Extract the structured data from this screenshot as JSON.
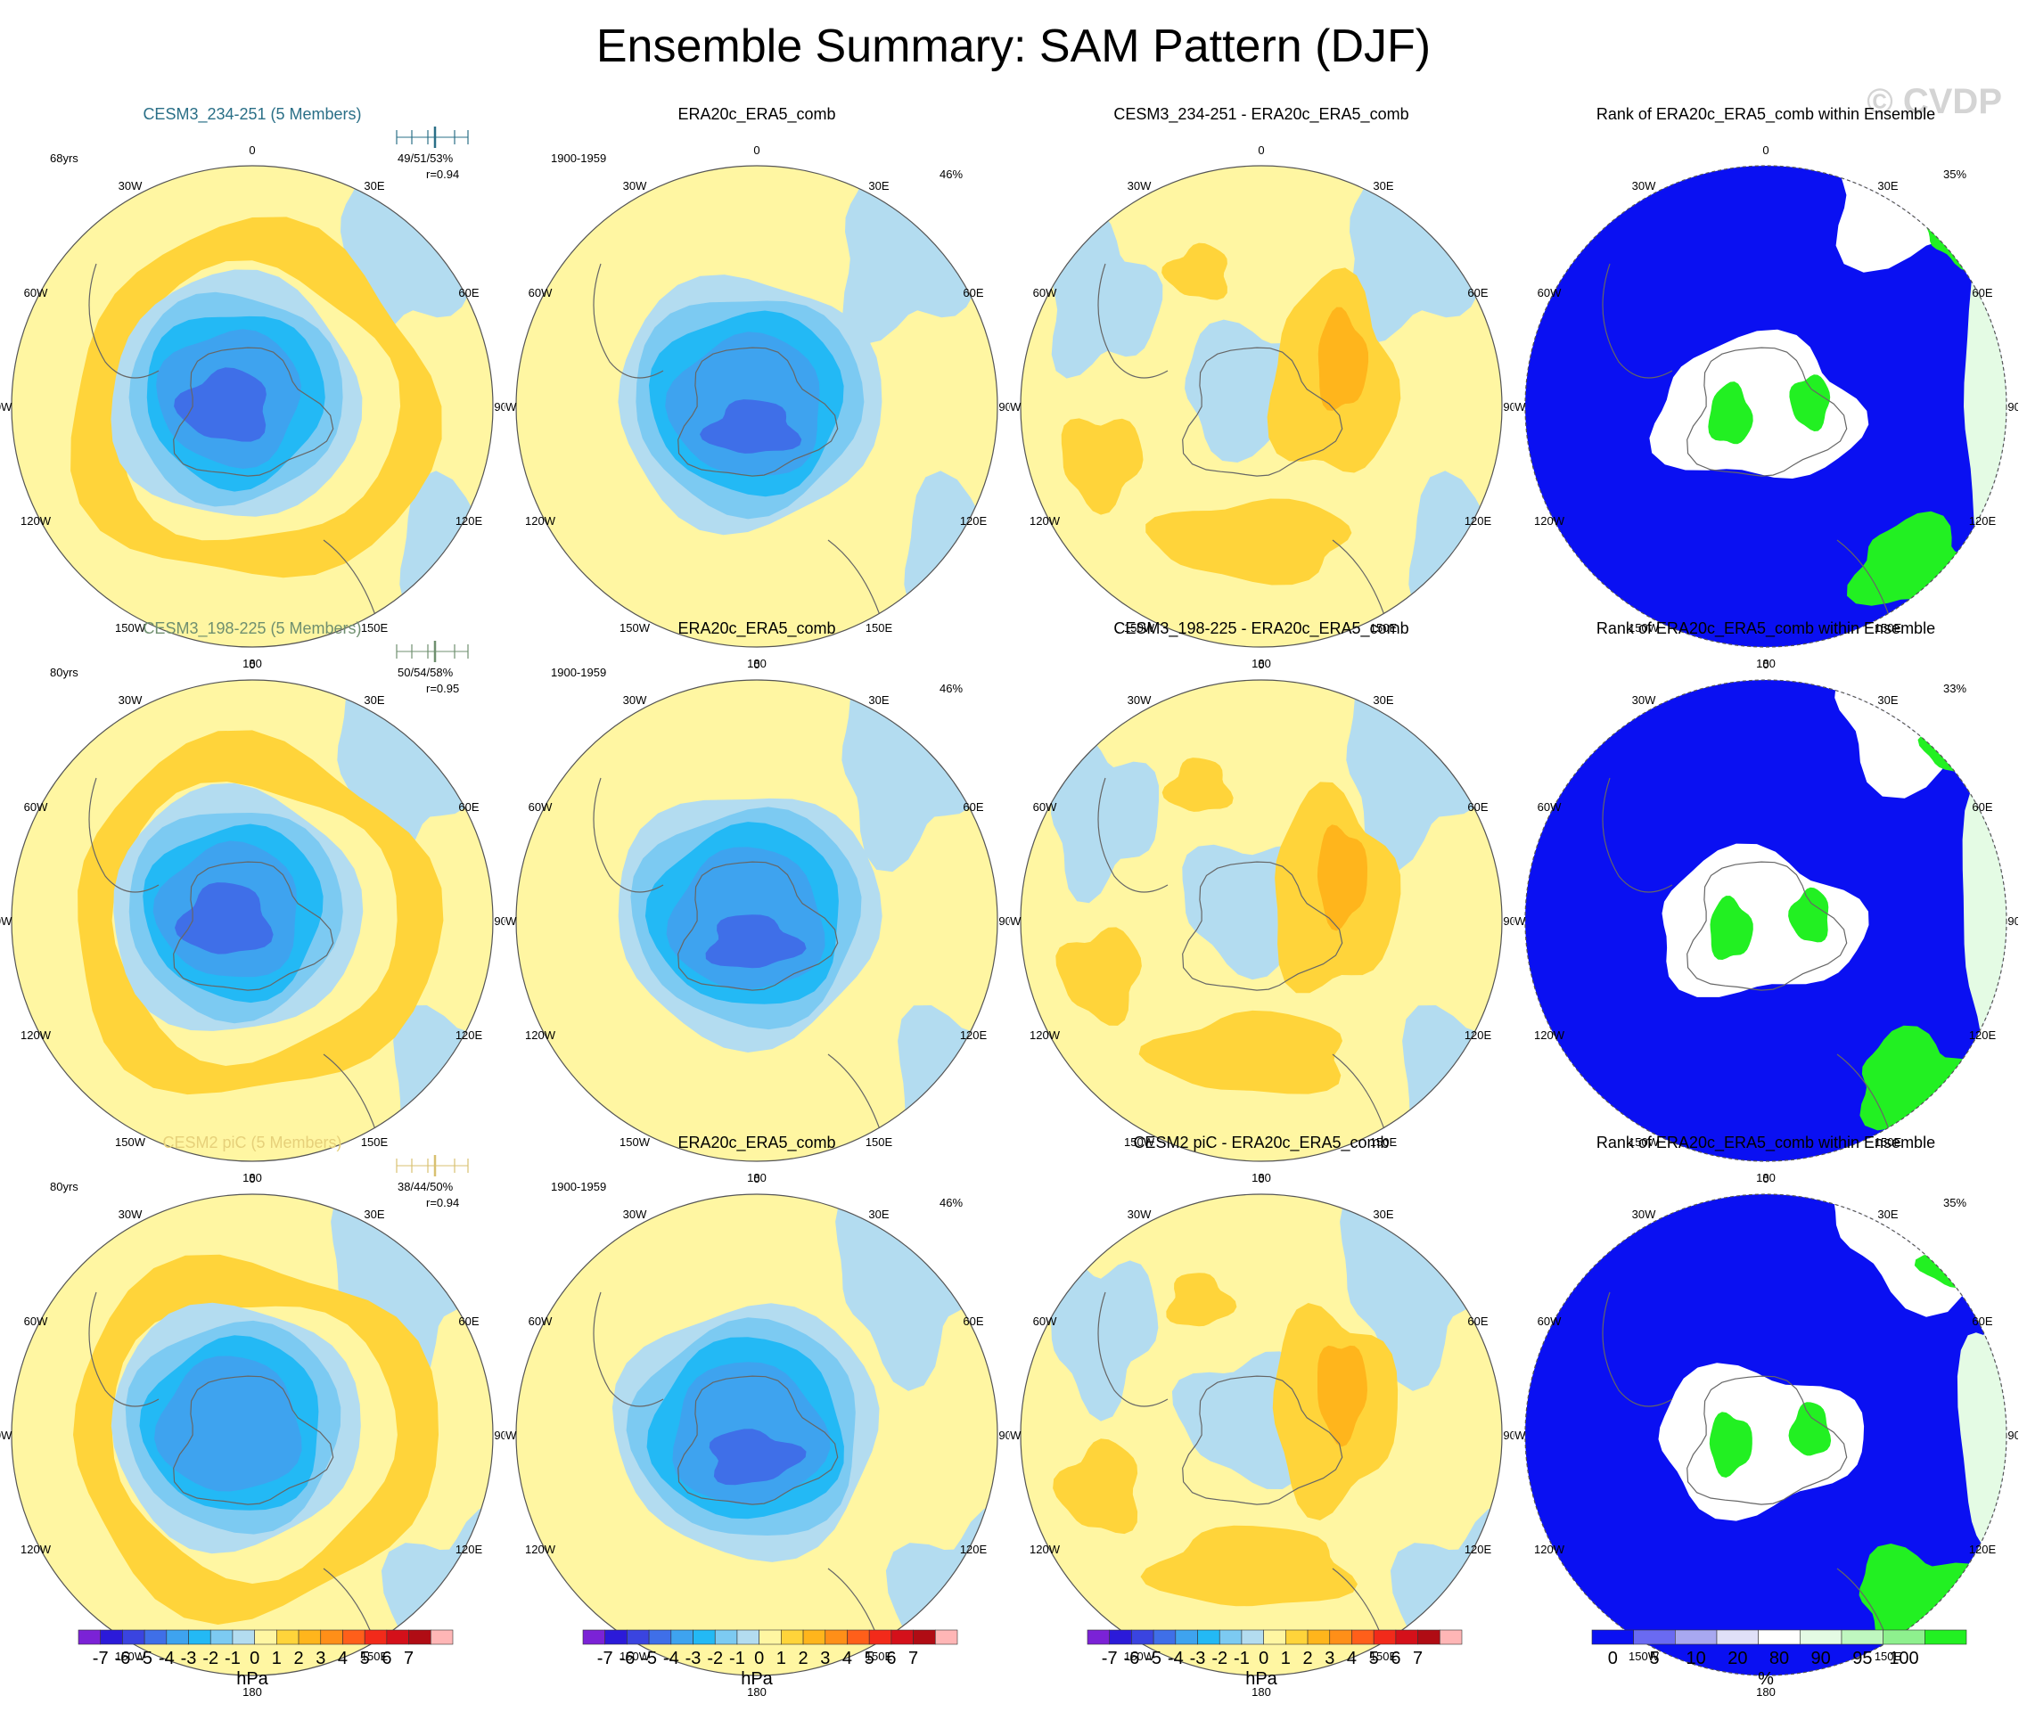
{
  "title": "Ensemble Summary: SAM Pattern (DJF)",
  "watermark": "© CVDP",
  "lon_labels": [
    "0",
    "30E",
    "60E",
    "90E",
    "120E",
    "150E",
    "180",
    "150W",
    "120W",
    "90W",
    "60W",
    "30W"
  ],
  "rows": [
    {
      "ensemble": {
        "title": "CESM3_234-251 (5 Members)",
        "title_color": "#2a6f87",
        "years": "68yrs",
        "pct": "49/51/53%",
        "r": "r=0.94",
        "tick_color": "#2a6f87"
      },
      "obs": {
        "title": "ERA20c_ERA5_comb",
        "years": "1900-1959",
        "pct": "46%"
      },
      "diff": {
        "title": "CESM3_234-251 - ERA20c_ERA5_comb"
      },
      "rank": {
        "title": "Rank of ERA20c_ERA5_comb within Ensemble",
        "pct": "35%"
      }
    },
    {
      "ensemble": {
        "title": "CESM3_198-225 (5 Members)",
        "title_color": "#6f8f6f",
        "years": "80yrs",
        "pct": "50/54/58%",
        "r": "r=0.95",
        "tick_color": "#6f8f6f"
      },
      "obs": {
        "title": "ERA20c_ERA5_comb",
        "years": "1900-1959",
        "pct": "46%"
      },
      "diff": {
        "title": "CESM3_198-225 - ERA20c_ERA5_comb"
      },
      "rank": {
        "title": "Rank of ERA20c_ERA5_comb within Ensemble",
        "pct": "33%"
      }
    },
    {
      "ensemble": {
        "title": "CESM2 piC (5 Members)",
        "title_color": "#e6d07a",
        "years": "80yrs",
        "pct": "38/44/50%",
        "r": "r=0.94",
        "tick_color": "#d8c070"
      },
      "obs": {
        "title": "ERA20c_ERA5_comb",
        "years": "1900-1959",
        "pct": "46%"
      },
      "diff": {
        "title": "CESM2 piC - ERA20c_ERA5_comb"
      },
      "rank": {
        "title": "Rank of ERA20c_ERA5_comb within Ensemble",
        "pct": "35%"
      }
    }
  ],
  "colorbar_hpa": {
    "unit": "hPa",
    "colors": [
      "#7b22d6",
      "#2b1ad9",
      "#3a44e0",
      "#3f6fe8",
      "#3ea3ef",
      "#23b9f5",
      "#7ccaf2",
      "#b3dcf0",
      "#fff6a2",
      "#ffd43a",
      "#ffb51c",
      "#ff8f18",
      "#ff5f1a",
      "#f22a1a",
      "#d4101a",
      "#b00c14",
      "#ffb6b6"
    ],
    "labels": [
      "-7",
      "-6",
      "-5",
      "-4",
      "-3",
      "-2",
      "-1",
      "0",
      "1",
      "2",
      "3",
      "4",
      "5",
      "6",
      "7"
    ]
  },
  "colorbar_pct": {
    "unit": "%",
    "colors": [
      "#0a10f2",
      "#6a6af2",
      "#a8a8f0",
      "#e0e0f8",
      "#ffffff",
      "#e4fbe4",
      "#bff7bf",
      "#8ef08e",
      "#22f022"
    ],
    "labels": [
      "0",
      "5",
      "10",
      "20",
      "80",
      "90",
      "95",
      "100"
    ]
  }
}
